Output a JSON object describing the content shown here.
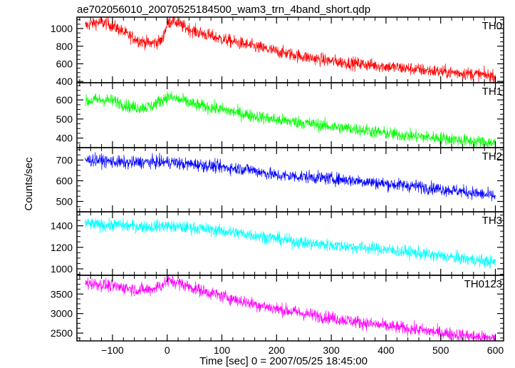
{
  "chart_data": {
    "type": "line",
    "title": "ae702056010_20070525184500_wam3_trn_4band_short.qdp",
    "xlabel": "Time [sec] 0 = 2007/05/25 18:45:00",
    "ylabel": "Counts/sec",
    "xlim": [
      -165,
      615
    ],
    "x_ticks": [
      "−100",
      "0",
      "100",
      "200",
      "300",
      "400",
      "500",
      "600"
    ],
    "x_tick_values": [
      -100,
      0,
      100,
      200,
      300,
      400,
      500,
      600
    ],
    "x": [
      -150,
      -130,
      -110,
      -90,
      -70,
      -50,
      -30,
      -10,
      0,
      10,
      30,
      50,
      100,
      150,
      200,
      250,
      300,
      350,
      400,
      450,
      500,
      550,
      600
    ],
    "panels": [
      {
        "name": "TH0",
        "color": "#ff0000",
        "ylim": [
          385,
          1130
        ],
        "y_ticks": [
          400,
          600,
          800,
          1000
        ],
        "values": [
          1030,
          1070,
          1060,
          1000,
          920,
          860,
          830,
          860,
          1050,
          1100,
          1020,
          970,
          880,
          810,
          740,
          680,
          630,
          600,
          570,
          540,
          510,
          490,
          460
        ]
      },
      {
        "name": "TH1",
        "color": "#00ff00",
        "ylim": [
          350,
          690
        ],
        "y_ticks": [
          400,
          500,
          600
        ],
        "values": [
          590,
          600,
          600,
          590,
          565,
          560,
          565,
          600,
          615,
          610,
          595,
          575,
          550,
          520,
          495,
          480,
          460,
          445,
          425,
          410,
          400,
          385,
          375
        ]
      },
      {
        "name": "TH2",
        "color": "#0000ff",
        "ylim": [
          450,
          760
        ],
        "y_ticks": [
          500,
          600,
          700
        ],
        "values": [
          700,
          700,
          695,
          690,
          685,
          690,
          690,
          690,
          690,
          690,
          680,
          680,
          665,
          655,
          625,
          620,
          610,
          600,
          585,
          575,
          560,
          545,
          525
        ]
      },
      {
        "name": "TH3",
        "color": "#00ffff",
        "ylim": [
          940,
          1530
        ],
        "y_ticks": [
          1000,
          1200,
          1400
        ],
        "values": [
          1420,
          1410,
          1405,
          1410,
          1400,
          1395,
          1390,
          1400,
          1400,
          1390,
          1385,
          1380,
          1350,
          1320,
          1280,
          1240,
          1220,
          1200,
          1180,
          1150,
          1120,
          1090,
          1060
        ]
      },
      {
        "name": "TH0123",
        "color": "#ff00ff",
        "ylim": [
          2300,
          3980
        ],
        "y_ticks": [
          2500,
          3000,
          3500
        ],
        "values": [
          3780,
          3760,
          3720,
          3680,
          3650,
          3600,
          3620,
          3720,
          3840,
          3830,
          3740,
          3640,
          3450,
          3270,
          3120,
          3000,
          2890,
          2780,
          2680,
          2600,
          2510,
          2430,
          2360
        ]
      }
    ],
    "grid": false,
    "legend": "panel labels at top-right of each panel"
  }
}
